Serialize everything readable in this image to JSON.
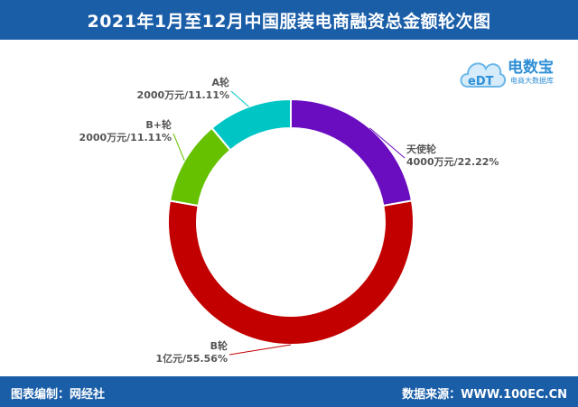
{
  "header": {
    "title": "2021年1月至12月中国服装电商融资总金额轮次图"
  },
  "logo": {
    "name": "电数宝",
    "subtitle": "电商大数据库",
    "mark": "eDT"
  },
  "footer": {
    "credit": "图表编制：网经社",
    "source": "数据来源：WWW.100EC.CN"
  },
  "colors": {
    "header_bg": "#1b5ea8"
  },
  "chart_data": {
    "type": "pie",
    "title": "2021年1月至12月中国服装电商融资总金额轮次图",
    "donut": true,
    "slices": [
      {
        "name": "天使轮",
        "value_label": "4000万元/22.22%",
        "value": 4000,
        "percent": 22.22,
        "color": "#6a0dc0"
      },
      {
        "name": "B轮",
        "value_label": "1亿元/55.56%",
        "value": 10000,
        "percent": 55.56,
        "color": "#c20000"
      },
      {
        "name": "B+轮",
        "value_label": "2000万元/11.11%",
        "value": 2000,
        "percent": 11.11,
        "color": "#66c200"
      },
      {
        "name": "A轮",
        "value_label": "2000万元/11.11%",
        "value": 2000,
        "percent": 11.11,
        "color": "#00c5c5"
      }
    ]
  }
}
